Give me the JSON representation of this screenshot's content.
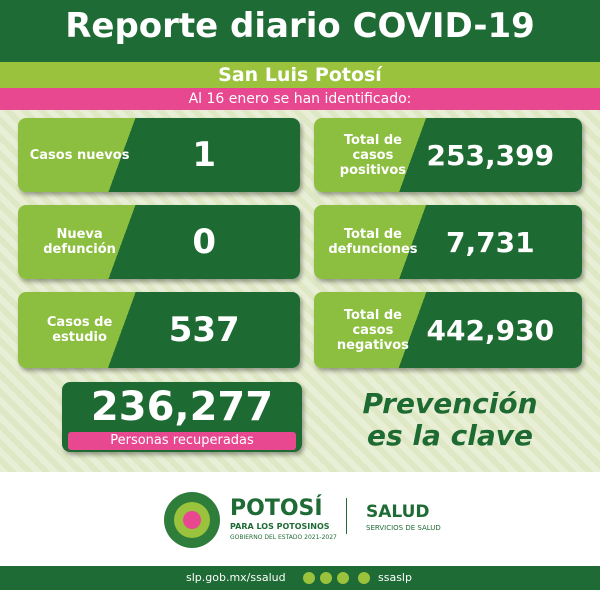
{
  "header": {
    "title": "Reporte diario COVID-19",
    "subtitle": "San Luis Potosí",
    "date_line": "Al 16 enero se han identificado:"
  },
  "stats": [
    {
      "label": "Casos nuevos",
      "value": "1"
    },
    {
      "label": "Total de casos positivos",
      "value": "253,399"
    },
    {
      "label": "Nueva defunción",
      "value": "0"
    },
    {
      "label": "Total de defunciones",
      "value": "7,731"
    },
    {
      "label": "Casos de estudio",
      "value": "537"
    },
    {
      "label": "Total de casos negativos",
      "value": "442,930"
    }
  ],
  "recovered": {
    "value": "236,277",
    "label": "Personas recuperadas"
  },
  "slogan": [
    "Prevención",
    "es la clave"
  ],
  "footer": {
    "brand": "POTOSÍ",
    "tagline": "PARA LOS POTOSINOS",
    "government": "GOBIERNO DEL ESTADO 2021-2027",
    "agency": "SALUD",
    "agency_sub": "SERVICIOS DE SALUD",
    "website": "slp.gob.mx/ssalud",
    "handle": "ssaslp"
  }
}
